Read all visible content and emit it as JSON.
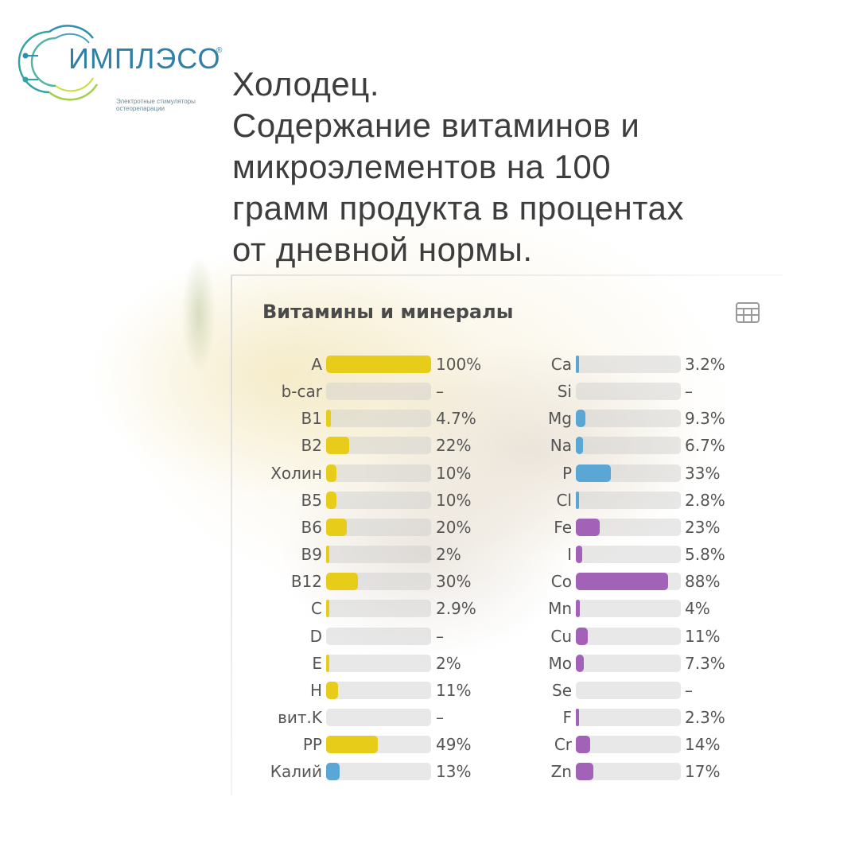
{
  "logo": {
    "name": "ИМПЛЭСО",
    "registered": "®",
    "tagline_1": "Электротные стимуляторы",
    "tagline_2": "остеорепарации"
  },
  "heading": {
    "line1": "Холодец.",
    "line2": "Содержание витаминов и",
    "line3": "микроэлементов на 100",
    "line4": "грамм продукта в процентах",
    "line5": "от дневной нормы."
  },
  "panel": {
    "title": "Витамины и минералы",
    "table_icon": "table-icon"
  },
  "colors": {
    "vitamin": "#e8cc1a",
    "potassium": "#5aa6d4",
    "mineral_blue": "#5aa6d4",
    "mineral_purple": "#a162b8",
    "track": "#cdcdcd"
  },
  "chart_data": {
    "type": "bar",
    "title": "Витамины и минералы",
    "xlim": [
      0,
      100
    ],
    "groups": [
      {
        "items": [
          {
            "name": "A",
            "value": 100,
            "label": "100%",
            "color": "#e8cc1a"
          },
          {
            "name": "b-car",
            "value": null,
            "label": "–",
            "color": "#e8cc1a"
          },
          {
            "name": "B1",
            "value": 4.7,
            "label": "4.7%",
            "color": "#e8cc1a"
          },
          {
            "name": "B2",
            "value": 22,
            "label": "22%",
            "color": "#e8cc1a"
          },
          {
            "name": "Холин",
            "value": 10,
            "label": "10%",
            "color": "#e8cc1a"
          },
          {
            "name": "B5",
            "value": 10,
            "label": "10%",
            "color": "#e8cc1a"
          },
          {
            "name": "B6",
            "value": 20,
            "label": "20%",
            "color": "#e8cc1a"
          },
          {
            "name": "B9",
            "value": 2,
            "label": "2%",
            "color": "#e8cc1a"
          },
          {
            "name": "B12",
            "value": 30,
            "label": "30%",
            "color": "#e8cc1a"
          },
          {
            "name": "C",
            "value": 2.9,
            "label": "2.9%",
            "color": "#e8cc1a"
          },
          {
            "name": "D",
            "value": null,
            "label": "–",
            "color": "#e8cc1a"
          },
          {
            "name": "E",
            "value": 2,
            "label": "2%",
            "color": "#e8cc1a"
          },
          {
            "name": "H",
            "value": 11,
            "label": "11%",
            "color": "#e8cc1a"
          },
          {
            "name": "вит.K",
            "value": null,
            "label": "–",
            "color": "#e8cc1a"
          },
          {
            "name": "PP",
            "value": 49,
            "label": "49%",
            "color": "#e8cc1a"
          },
          {
            "name": "Калий",
            "value": 13,
            "label": "13%",
            "color": "#5aa6d4"
          }
        ]
      },
      {
        "items": [
          {
            "name": "Ca",
            "value": 3.2,
            "label": "3.2%",
            "color": "#5aa6d4"
          },
          {
            "name": "Si",
            "value": null,
            "label": "–",
            "color": "#5aa6d4"
          },
          {
            "name": "Mg",
            "value": 9.3,
            "label": "9.3%",
            "color": "#5aa6d4"
          },
          {
            "name": "Na",
            "value": 6.7,
            "label": "6.7%",
            "color": "#5aa6d4"
          },
          {
            "name": "P",
            "value": 33,
            "label": "33%",
            "color": "#5aa6d4"
          },
          {
            "name": "Cl",
            "value": 2.8,
            "label": "2.8%",
            "color": "#5aa6d4"
          },
          {
            "name": "Fe",
            "value": 23,
            "label": "23%",
            "color": "#a162b8"
          },
          {
            "name": "I",
            "value": 5.8,
            "label": "5.8%",
            "color": "#a162b8"
          },
          {
            "name": "Co",
            "value": 88,
            "label": "88%",
            "color": "#a162b8"
          },
          {
            "name": "Mn",
            "value": 4,
            "label": "4%",
            "color": "#a162b8"
          },
          {
            "name": "Cu",
            "value": 11,
            "label": "11%",
            "color": "#a162b8"
          },
          {
            "name": "Mo",
            "value": 7.3,
            "label": "7.3%",
            "color": "#a162b8"
          },
          {
            "name": "Se",
            "value": null,
            "label": "–",
            "color": "#a162b8"
          },
          {
            "name": "F",
            "value": 2.3,
            "label": "2.3%",
            "color": "#a162b8"
          },
          {
            "name": "Cr",
            "value": 14,
            "label": "14%",
            "color": "#a162b8"
          },
          {
            "name": "Zn",
            "value": 17,
            "label": "17%",
            "color": "#a162b8"
          }
        ]
      }
    ]
  }
}
